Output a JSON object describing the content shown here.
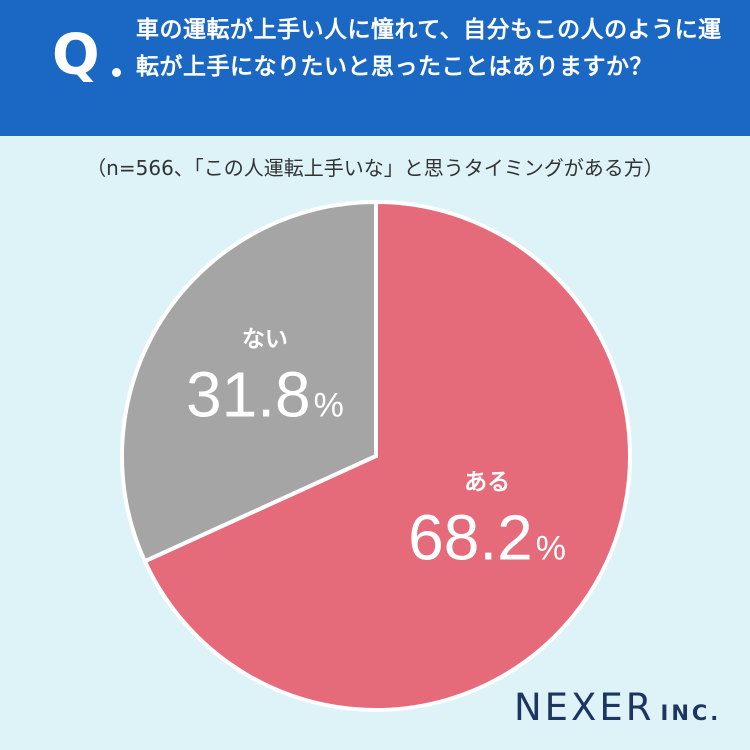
{
  "header": {
    "q_mark": "Q",
    "question": "車の運転が上手い人に憧れて、自分もこの人のように運転が上手になりたいと思ったことはありますか？"
  },
  "subtitle": "（n=566、「この人運転上手いな」と思うタイミングがある方）",
  "chart_data": {
    "type": "pie",
    "start_angle_deg": 0,
    "direction": "clockwise",
    "slices": [
      {
        "label": "ある",
        "value": 68.2,
        "display": "68.2",
        "unit": "%",
        "color": "#e56b7a"
      },
      {
        "label": "ない",
        "value": 31.8,
        "display": "31.8",
        "unit": "%",
        "color": "#a5a5a5"
      }
    ]
  },
  "logo": {
    "brand": "NEXER",
    "suffix": "INC."
  }
}
